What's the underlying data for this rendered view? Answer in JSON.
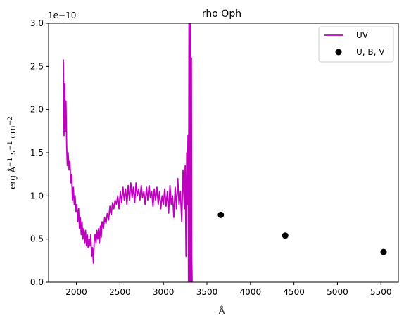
{
  "chart_data": {
    "type": "line",
    "title": "rho Oph",
    "xlabel": "Å",
    "ylabel_parts": [
      "erg Å",
      "−1",
      " s",
      "−1",
      " cm",
      "−2"
    ],
    "offset_text": "1e−10",
    "xlim": [
      1680,
      5700
    ],
    "ylim": [
      0,
      3.0
    ],
    "y_scale_exponent": -10,
    "x_ticks": [
      2000,
      2500,
      3000,
      3500,
      4000,
      4500,
      5000,
      5500
    ],
    "x_tick_labels": [
      "2000",
      "2500",
      "3000",
      "3500",
      "4000",
      "4500",
      "5000",
      "5500"
    ],
    "y_ticks": [
      0,
      0.5,
      1.0,
      1.5,
      2.0,
      2.5,
      3.0
    ],
    "y_tick_labels": [
      "0.0",
      "0.5",
      "1.0",
      "1.5",
      "2.0",
      "2.5",
      "3.0"
    ],
    "grid": false,
    "legend_position": "upper-right",
    "series": [
      {
        "name": "UV",
        "kind": "line",
        "color": "#bf00bf",
        "x": [
          1850,
          1858,
          1865,
          1872,
          1880,
          1888,
          1895,
          1905,
          1915,
          1925,
          1935,
          1945,
          1955,
          1965,
          1975,
          1985,
          1995,
          2005,
          2015,
          2025,
          2035,
          2045,
          2055,
          2065,
          2075,
          2085,
          2095,
          2105,
          2115,
          2125,
          2135,
          2145,
          2155,
          2165,
          2175,
          2185,
          2195,
          2205,
          2215,
          2225,
          2235,
          2245,
          2255,
          2265,
          2275,
          2285,
          2295,
          2310,
          2325,
          2340,
          2355,
          2370,
          2385,
          2400,
          2415,
          2430,
          2445,
          2460,
          2475,
          2490,
          2505,
          2520,
          2535,
          2550,
          2565,
          2580,
          2595,
          2610,
          2625,
          2640,
          2655,
          2670,
          2685,
          2700,
          2715,
          2730,
          2745,
          2760,
          2775,
          2790,
          2805,
          2820,
          2835,
          2850,
          2865,
          2880,
          2895,
          2910,
          2925,
          2940,
          2955,
          2970,
          2985,
          3000,
          3015,
          3030,
          3045,
          3060,
          3075,
          3090,
          3105,
          3120,
          3135,
          3150,
          3165,
          3180,
          3195,
          3210,
          3225,
          3240,
          3250,
          3260,
          3268,
          3275,
          3282,
          3288,
          3294,
          3299,
          3304,
          3309,
          3313,
          3317,
          3321,
          3325,
          3330
        ],
        "y": [
          2.58,
          1.7,
          2.3,
          1.75,
          2.1,
          1.6,
          1.35,
          1.5,
          1.3,
          1.4,
          1.15,
          1.25,
          0.95,
          1.1,
          0.9,
          1.0,
          0.82,
          0.9,
          0.7,
          0.85,
          0.62,
          0.75,
          0.55,
          0.7,
          0.5,
          0.62,
          0.45,
          0.6,
          0.42,
          0.55,
          0.4,
          0.5,
          0.42,
          0.55,
          0.3,
          0.4,
          0.22,
          0.48,
          0.55,
          0.45,
          0.6,
          0.5,
          0.62,
          0.45,
          0.65,
          0.52,
          0.7,
          0.62,
          0.75,
          0.68,
          0.8,
          0.72,
          0.88,
          0.78,
          0.92,
          0.85,
          0.95,
          0.9,
          1.0,
          0.85,
          1.05,
          0.92,
          1.1,
          0.95,
          1.08,
          0.9,
          1.12,
          0.95,
          1.15,
          0.98,
          1.1,
          0.92,
          1.15,
          1.0,
          1.08,
          0.95,
          1.12,
          0.98,
          1.05,
          0.9,
          1.1,
          0.95,
          1.12,
          0.98,
          1.05,
          0.88,
          1.08,
          0.95,
          1.1,
          0.9,
          1.05,
          0.85,
          1.0,
          0.9,
          1.08,
          0.88,
          1.05,
          0.8,
          1.12,
          0.9,
          1.0,
          0.75,
          1.1,
          0.85,
          1.2,
          0.9,
          1.05,
          0.7,
          1.3,
          0.85,
          1.35,
          0.3,
          1.5,
          0.9,
          1.7,
          0.0,
          3.0,
          1.4,
          0.0,
          3.0,
          1.5,
          0.0,
          2.6,
          0.3,
          0.0
        ]
      },
      {
        "name": "U, B, V",
        "kind": "scatter",
        "color": "#000000",
        "x": [
          3660,
          4400,
          5530
        ],
        "y": [
          0.78,
          0.54,
          0.35
        ]
      }
    ]
  }
}
